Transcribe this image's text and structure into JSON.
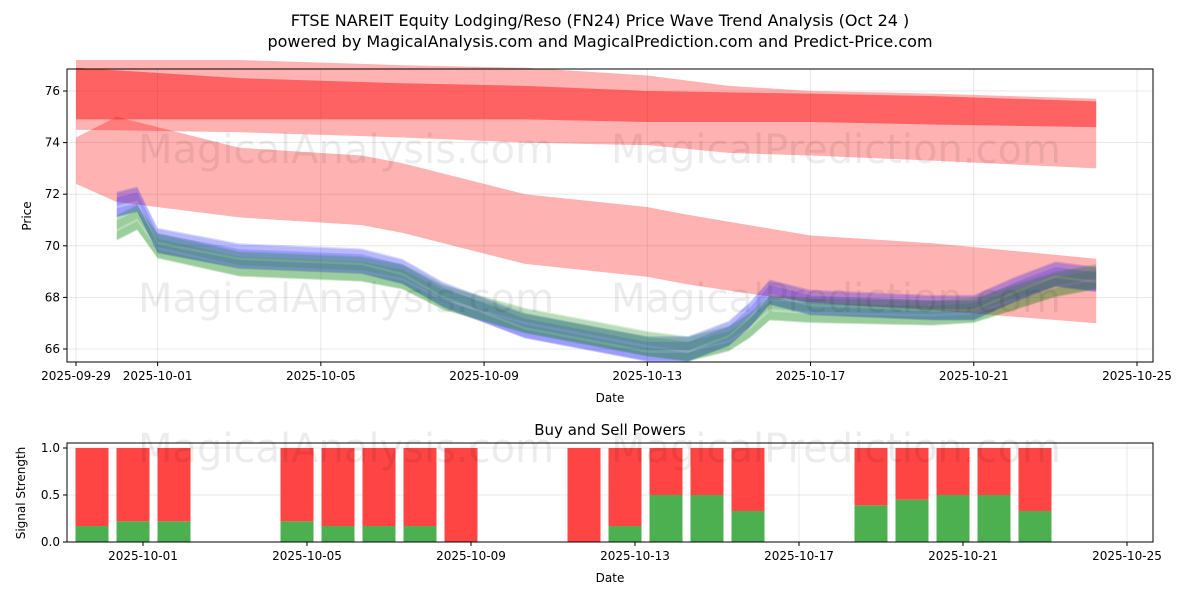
{
  "title_line1": "FTSE NAREIT Equity Lodging/Reso (FN24) Price Wave Trend Analysis (Oct 24 )",
  "title_line2": "powered by MagicalAnalysis.com and MagicalPrediction.com and Predict-Price.com",
  "watermarks": [
    "MagicalAnalysis.com",
    "MagicalPrediction.com"
  ],
  "colors": {
    "red_band": "#ff0000",
    "blue_band": "#0000ff",
    "green_band": "#008000",
    "buy": "#4caf50",
    "sell": "#ff4444"
  },
  "chart_data": [
    {
      "type": "area",
      "name": "price-wave-chart",
      "title": "",
      "xlabel": "Date",
      "ylabel": "Price",
      "grid": true,
      "xlim": [
        "2025-09-28T18:00",
        "2025-10-25T04:00"
      ],
      "ylim": [
        65.4,
        76.9
      ],
      "x_ticks": [
        "2025-09-29",
        "2025-10-01",
        "2025-10-05",
        "2025-10-09",
        "2025-10-13",
        "2025-10-17",
        "2025-10-21",
        "2025-10-25"
      ],
      "y_ticks": [
        66,
        68,
        70,
        72,
        74,
        76
      ],
      "series": [
        {
          "name": "upper-red-band",
          "color": "red",
          "opacity": 0.3,
          "x": [
            "2025-09-29",
            "2025-10-03",
            "2025-10-07",
            "2025-10-10",
            "2025-10-13",
            "2025-10-15",
            "2025-10-17",
            "2025-10-20",
            "2025-10-24"
          ],
          "upper": [
            77.2,
            77.2,
            77.0,
            76.9,
            76.6,
            76.2,
            76.0,
            75.9,
            75.7
          ],
          "lower": [
            74.5,
            74.4,
            74.2,
            74.0,
            73.9,
            73.6,
            73.5,
            73.3,
            73.0
          ]
        },
        {
          "name": "upper-red-core",
          "color": "red",
          "opacity": 0.45,
          "x": [
            "2025-09-29",
            "2025-10-03",
            "2025-10-07",
            "2025-10-10",
            "2025-10-13",
            "2025-10-17",
            "2025-10-20",
            "2025-10-24"
          ],
          "upper": [
            76.9,
            76.5,
            76.3,
            76.2,
            76.0,
            75.9,
            75.8,
            75.6
          ],
          "lower": [
            74.9,
            74.9,
            74.9,
            74.9,
            74.8,
            74.8,
            74.7,
            74.6
          ]
        },
        {
          "name": "lower-red-band",
          "color": "red",
          "opacity": 0.3,
          "x": [
            "2025-09-29",
            "2025-09-30",
            "2025-10-03",
            "2025-10-06",
            "2025-10-07",
            "2025-10-10",
            "2025-10-13",
            "2025-10-14",
            "2025-10-17",
            "2025-10-20",
            "2025-10-24"
          ],
          "upper": [
            74.2,
            75.0,
            73.8,
            73.5,
            73.2,
            72.0,
            71.5,
            71.2,
            70.4,
            70.1,
            69.5
          ],
          "lower": [
            72.4,
            71.7,
            71.1,
            70.8,
            70.5,
            69.3,
            68.8,
            68.5,
            67.8,
            67.5,
            67.0
          ]
        },
        {
          "name": "blue-wave",
          "color": "blue",
          "opacity": 0.15,
          "x": [
            "2025-09-30",
            "2025-09-30T12:00",
            "2025-10-01",
            "2025-10-03",
            "2025-10-06",
            "2025-10-07",
            "2025-10-08",
            "2025-10-10",
            "2025-10-13",
            "2025-10-14",
            "2025-10-15",
            "2025-10-15T12:00",
            "2025-10-16",
            "2025-10-17",
            "2025-10-20",
            "2025-10-21",
            "2025-10-22",
            "2025-10-23",
            "2025-10-24"
          ],
          "center": [
            71.6,
            71.8,
            70.2,
            69.6,
            69.4,
            69.0,
            68.1,
            66.9,
            66.0,
            66.0,
            66.6,
            67.3,
            68.2,
            67.8,
            67.6,
            67.6,
            68.3,
            68.9,
            68.7
          ]
        },
        {
          "name": "green-wave",
          "color": "green",
          "opacity": 0.15,
          "x": [
            "2025-09-30",
            "2025-09-30T12:00",
            "2025-10-01",
            "2025-10-03",
            "2025-10-06",
            "2025-10-07",
            "2025-10-08",
            "2025-10-10",
            "2025-10-13",
            "2025-10-14",
            "2025-10-15",
            "2025-10-15T12:00",
            "2025-10-16",
            "2025-10-17",
            "2025-10-20",
            "2025-10-21",
            "2025-10-22",
            "2025-10-23",
            "2025-10-24"
          ],
          "center": [
            70.7,
            71.1,
            70.0,
            69.3,
            69.1,
            68.8,
            68.0,
            67.1,
            66.2,
            66.0,
            66.4,
            66.9,
            67.6,
            67.5,
            67.4,
            67.5,
            68.0,
            68.5,
            68.8
          ]
        }
      ]
    },
    {
      "type": "bar",
      "name": "buy-sell-powers-chart",
      "title": "Buy and Sell Powers",
      "xlabel": "Date",
      "ylabel": "Signal Strength",
      "grid": true,
      "ylim": [
        0,
        1.05
      ],
      "x_ticks": [
        "2025-10-01",
        "2025-10-05",
        "2025-10-09",
        "2025-10-13",
        "2025-10-17",
        "2025-10-21",
        "2025-10-25"
      ],
      "y_ticks": [
        "0.0",
        "0.5",
        "1.0"
      ],
      "categories": [
        "2025-09-30",
        "2025-10-01",
        "2025-10-02",
        "2025-10-05",
        "2025-10-06",
        "2025-10-07",
        "2025-10-08",
        "2025-10-09",
        "2025-10-12",
        "2025-10-13",
        "2025-10-14",
        "2025-10-15",
        "2025-10-16",
        "2025-10-19",
        "2025-10-20",
        "2025-10-21",
        "2025-10-22",
        "2025-10-23"
      ],
      "series": [
        {
          "name": "Buy",
          "color": "green",
          "values": [
            0.17,
            0.22,
            0.22,
            0.22,
            0.17,
            0.17,
            0.17,
            0.0,
            0.0,
            0.17,
            0.5,
            0.5,
            0.33,
            0.39,
            0.45,
            0.5,
            0.5,
            0.33
          ]
        },
        {
          "name": "Sell",
          "color": "red",
          "values": [
            0.83,
            0.78,
            0.78,
            0.78,
            0.83,
            0.83,
            0.83,
            1.0,
            1.0,
            0.83,
            0.5,
            0.5,
            0.67,
            0.61,
            0.55,
            0.5,
            0.5,
            0.67
          ]
        }
      ]
    }
  ]
}
